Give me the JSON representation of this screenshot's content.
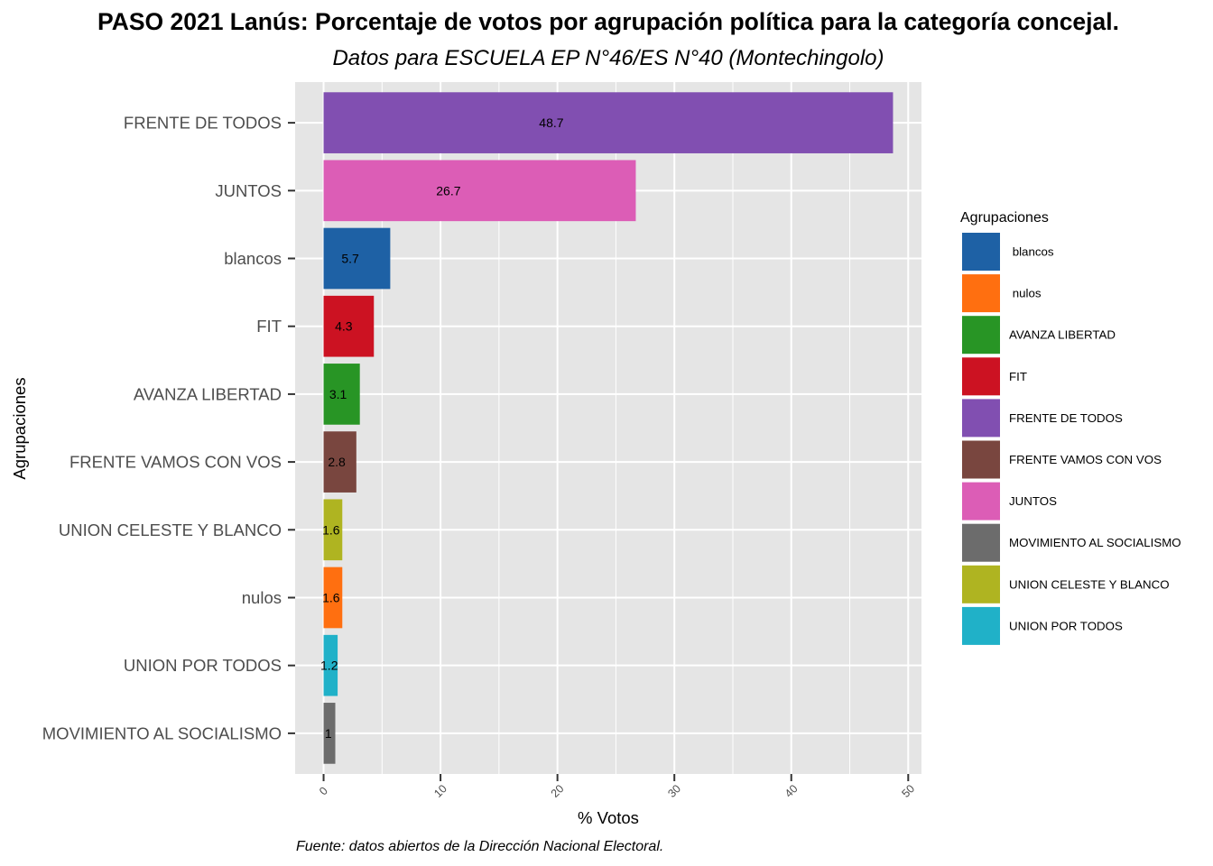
{
  "chart_data": {
    "type": "bar",
    "orientation": "horizontal",
    "title": "PASO 2021 Lanús: Porcentaje de votos por agrupación política para la categoría concejal.",
    "subtitle": "Datos para ESCUELA EP N°46/ES N°40 (Montechingolo)",
    "caption": "Fuente: datos abiertos de la Dirección Nacional Electoral.",
    "xlabel": "% Votos",
    "ylabel": "Agrupaciones",
    "xlim": [
      -2.435,
      51.135
    ],
    "xticks": [
      0,
      10,
      20,
      30,
      40,
      50
    ],
    "grid": true,
    "categories": [
      "FRENTE DE TODOS",
      "JUNTOS",
      "blancos",
      "FIT",
      "AVANZA LIBERTAD",
      "FRENTE VAMOS CON VOS",
      "UNION CELESTE Y BLANCO",
      "nulos",
      "UNION POR TODOS",
      "MOVIMIENTO AL SOCIALISMO"
    ],
    "values": [
      48.7,
      26.7,
      5.7,
      4.3,
      3.1,
      2.8,
      1.6,
      1.6,
      1.2,
      1
    ],
    "colors": [
      "#814FB1",
      "#DC5DB6",
      "#1E61A5",
      "#CC1222",
      "#289525",
      "#79463F",
      "#AFB421",
      "#FF6F10",
      "#20B1C8",
      "#6C6C6C"
    ],
    "legend": {
      "title": "Agrupaciones",
      "position": "right",
      "entries": [
        {
          "label": " blancos",
          "color": "#1E61A5"
        },
        {
          "label": " nulos",
          "color": "#FF6F10"
        },
        {
          "label": "AVANZA LIBERTAD",
          "color": "#289525"
        },
        {
          "label": "FIT",
          "color": "#CC1222"
        },
        {
          "label": "FRENTE DE TODOS",
          "color": "#814FB1"
        },
        {
          "label": "FRENTE VAMOS CON VOS",
          "color": "#79463F"
        },
        {
          "label": "JUNTOS",
          "color": "#DC5DB6"
        },
        {
          "label": "MOVIMIENTO AL SOCIALISMO",
          "color": "#6C6C6C"
        },
        {
          "label": "UNION CELESTE Y BLANCO",
          "color": "#AFB421"
        },
        {
          "label": "UNION POR TODOS",
          "color": "#20B1C8"
        }
      ]
    }
  }
}
